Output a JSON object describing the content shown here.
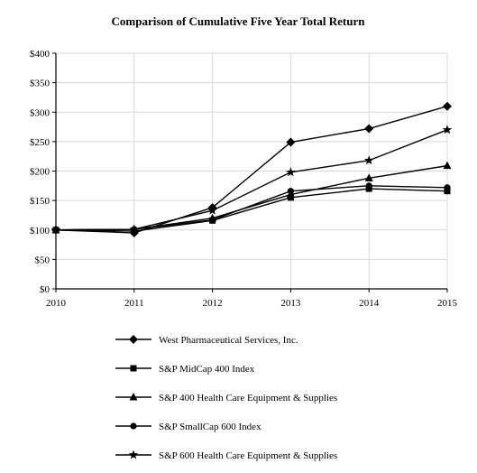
{
  "chart_data": {
    "type": "line",
    "title": "Comparison of Cumulative Five Year Total Return",
    "xlabel": "",
    "ylabel": "",
    "x": [
      "2010",
      "2011",
      "2012",
      "2013",
      "2014",
      "2015"
    ],
    "ylim": [
      0,
      400
    ],
    "yticks": [
      0,
      50,
      100,
      150,
      200,
      250,
      300,
      350,
      400
    ],
    "ytick_labels": [
      "$0",
      "$50",
      "$100",
      "$150",
      "$200",
      "$250",
      "$300",
      "$350",
      "$400"
    ],
    "grid": true,
    "legend_position": "bottom",
    "series": [
      {
        "name": "West Pharmaceutical Services, Inc.",
        "marker": "diamond",
        "values": [
          100,
          95,
          138,
          249,
          272,
          310
        ]
      },
      {
        "name": "S&P MidCap 400 Index",
        "marker": "square",
        "values": [
          100,
          98,
          116,
          155,
          170,
          166
        ]
      },
      {
        "name": "S&P 400 Health Care Equipment & Supplies",
        "marker": "triangle",
        "values": [
          100,
          101,
          120,
          160,
          188,
          209
        ]
      },
      {
        "name": "S&P SmallCap 600 Index",
        "marker": "circle",
        "values": [
          100,
          101,
          117,
          166,
          175,
          172
        ]
      },
      {
        "name": "S&P 600 Health Care Equipment & Supplies",
        "marker": "star",
        "values": [
          100,
          101,
          133,
          198,
          218,
          270
        ]
      }
    ],
    "colors": {
      "line": "#000000",
      "grid": "#d9d9d9",
      "axis": "#000000"
    }
  }
}
